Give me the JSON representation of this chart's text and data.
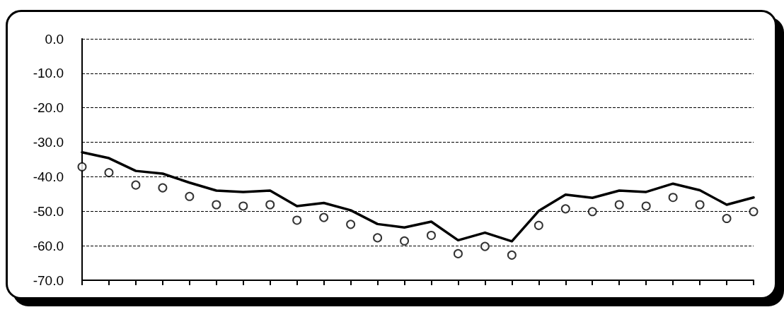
{
  "chart_data": {
    "type": "line",
    "categories": [
      null,
      null,
      null,
      null,
      null,
      null,
      null,
      null,
      null,
      null,
      null,
      null,
      null,
      null,
      null,
      null,
      null,
      null,
      null,
      null,
      null,
      null,
      null,
      null,
      null,
      null
    ],
    "series": [
      {
        "color": "#000000",
        "marker": "none",
        "line_style": "solid",
        "values": [
          -32.9,
          -34.6,
          -38.3,
          -39.1,
          -41.7,
          -44.0,
          -44.4,
          -44.0,
          -48.5,
          -47.6,
          -49.7,
          -53.7,
          -54.7,
          -53.0,
          -58.4,
          -56.2,
          -58.7,
          -49.9,
          -45.2,
          -46.1,
          -44.0,
          -44.4,
          -42.0,
          -43.9,
          -48.1,
          -46.0
        ]
      },
      {
        "type": "scatter",
        "color": "#000000",
        "marker": "circle",
        "values": [
          -37.1,
          -38.8,
          -42.4,
          -43.2,
          -45.7,
          -48.1,
          -48.5,
          -48.1,
          -52.6,
          -51.8,
          -53.8,
          -57.7,
          -58.6,
          -57.0,
          -62.3,
          -60.2,
          -62.7,
          -54.1,
          -49.3,
          -50.1,
          -48.1,
          -48.5,
          -46.0,
          -48.1,
          -52.1,
          -50.1
        ]
      }
    ],
    "ylim": [
      -70,
      0
    ],
    "yticks": [
      {
        "value": -70,
        "label": "-70.0"
      },
      {
        "value": -60,
        "label": "-60.0"
      },
      {
        "value": -50,
        "label": "-50.0"
      },
      {
        "value": -40,
        "label": "-40.0"
      },
      {
        "value": -30,
        "label": "-30.0"
      },
      {
        "value": -20,
        "label": "-20.0"
      },
      {
        "value": -10,
        "label": "-10.0"
      },
      {
        "value": 0,
        "label": "0.0"
      }
    ],
    "grid": "y",
    "tick_labels": "y"
  }
}
